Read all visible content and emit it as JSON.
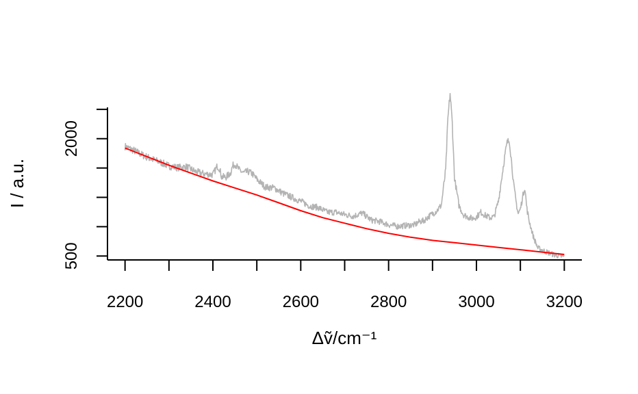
{
  "chart_data": {
    "type": "line",
    "title": "",
    "xlabel": "Δṽ/cm⁻¹",
    "ylabel": "I / a.u.",
    "xlim": [
      2160,
      3240
    ],
    "ylim": [
      450,
      2400
    ],
    "x_ticks": [
      2200,
      2300,
      2400,
      2500,
      2600,
      2700,
      2800,
      2900,
      3000,
      3100,
      3200
    ],
    "x_tick_labels": [
      "2200",
      "",
      "2400",
      "",
      "2600",
      "",
      "2800",
      "",
      "3000",
      "",
      "3200"
    ],
    "y_ticks": [
      500,
      875,
      1250,
      1625,
      2000,
      2375
    ],
    "y_tick_labels": [
      "500",
      "",
      "",
      "",
      "2000",
      ""
    ],
    "grid": false,
    "legend": "none",
    "series": [
      {
        "color": "#b3b3b3",
        "style": "spectrum",
        "x": [
          2200,
          2220,
          2240,
          2260,
          2280,
          2300,
          2320,
          2340,
          2360,
          2380,
          2400,
          2410,
          2415,
          2420,
          2430,
          2440,
          2445,
          2450,
          2460,
          2470,
          2480,
          2490,
          2500,
          2520,
          2540,
          2560,
          2580,
          2600,
          2620,
          2640,
          2660,
          2680,
          2700,
          2720,
          2740,
          2760,
          2780,
          2800,
          2820,
          2840,
          2860,
          2870,
          2880,
          2890,
          2900,
          2910,
          2920,
          2930,
          2935,
          2940,
          2945,
          2950,
          2960,
          2970,
          2980,
          2990,
          3000,
          3010,
          3020,
          3030,
          3040,
          3050,
          3060,
          3065,
          3070,
          3075,
          3080,
          3085,
          3090,
          3095,
          3100,
          3105,
          3110,
          3115,
          3120,
          3130,
          3140,
          3160,
          3180,
          3200
        ],
        "values": [
          1900,
          1850,
          1790,
          1740,
          1700,
          1650,
          1630,
          1640,
          1580,
          1550,
          1540,
          1650,
          1620,
          1510,
          1510,
          1560,
          1650,
          1680,
          1600,
          1560,
          1580,
          1550,
          1480,
          1380,
          1370,
          1300,
          1250,
          1200,
          1140,
          1120,
          1060,
          1060,
          1030,
          1010,
          1050,
          960,
          940,
          900,
          880,
          890,
          900,
          940,
          950,
          1000,
          1040,
          1080,
          1150,
          1600,
          2250,
          2580,
          2200,
          1500,
          1150,
          1030,
          1000,
          980,
          1000,
          1060,
          1020,
          990,
          1000,
          1200,
          1600,
          1800,
          1950,
          1980,
          1700,
          1400,
          1200,
          1040,
          1100,
          1250,
          1380,
          1100,
          950,
          740,
          600,
          550,
          510,
          490
        ]
      },
      {
        "color": "#ff0000",
        "style": "baseline",
        "x": [
          2200,
          2250,
          2300,
          2350,
          2400,
          2450,
          2500,
          2550,
          2600,
          2650,
          2700,
          2750,
          2800,
          2850,
          2900,
          2950,
          3000,
          3050,
          3100,
          3150,
          3200
        ],
        "values": [
          1880,
          1770,
          1660,
          1560,
          1460,
          1370,
          1280,
          1180,
          1080,
          990,
          920,
          850,
          790,
          740,
          700,
          670,
          640,
          610,
          580,
          550,
          520
        ]
      }
    ]
  }
}
